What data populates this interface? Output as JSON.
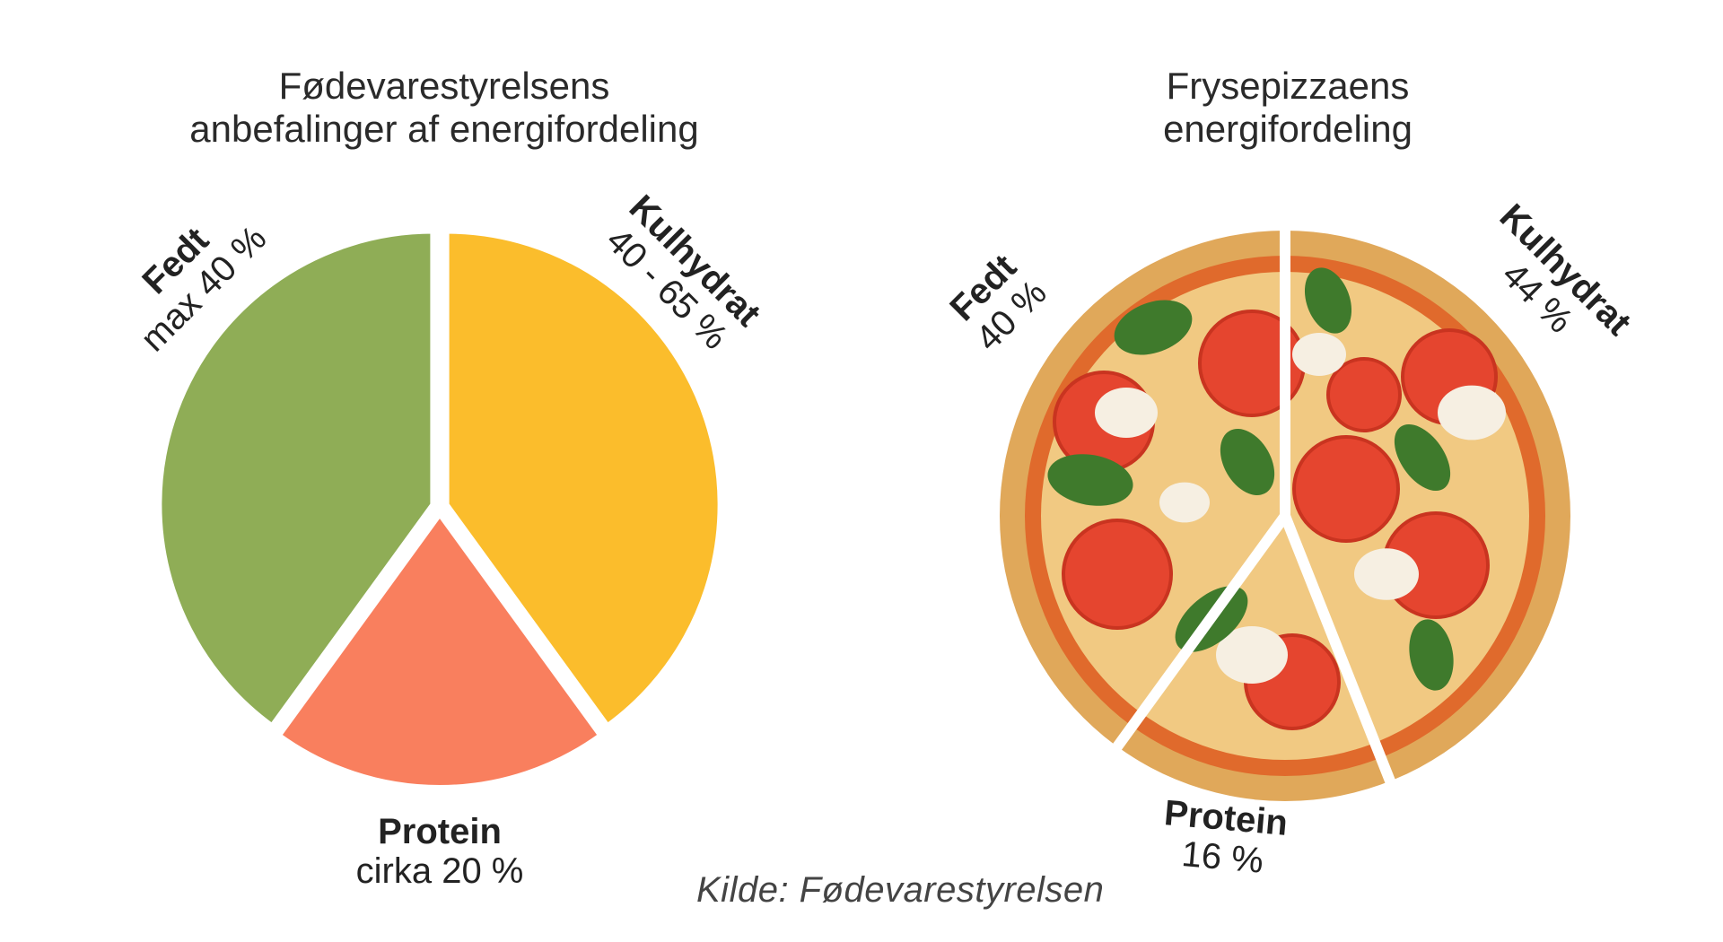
{
  "chart_data": [
    {
      "type": "pie",
      "title": "Fødevarestyrelsens\nanbefalinger af energifordeling",
      "slices": [
        {
          "name": "Fedt",
          "value": 40,
          "label": "max 40 %",
          "color": "#8fad56"
        },
        {
          "name": "Kulhydrat",
          "value": 40,
          "label": "40 - 65 %",
          "color": "#fbbd2c"
        },
        {
          "name": "Protein",
          "value": 20,
          "label": "cirka 20 %",
          "color": "#f97f5e"
        }
      ]
    },
    {
      "type": "pie",
      "title": "Frysepizzaens\nenergifordeling",
      "slices": [
        {
          "name": "Fedt",
          "value": 40,
          "label": "40 %"
        },
        {
          "name": "Kulhydrat",
          "value": 44,
          "label": "44 %"
        },
        {
          "name": "Protein",
          "value": 16,
          "label": "16 %"
        }
      ]
    }
  ],
  "source": "Kilde: Fødevarestyrelsen",
  "colors": {
    "crust": "#e0a85a",
    "cheese": "#f3d48c",
    "sauce": "#e06a2c",
    "tomato": "#e5452f",
    "basil": "#3f7a2c",
    "mozzarella": "#f6efe2"
  }
}
